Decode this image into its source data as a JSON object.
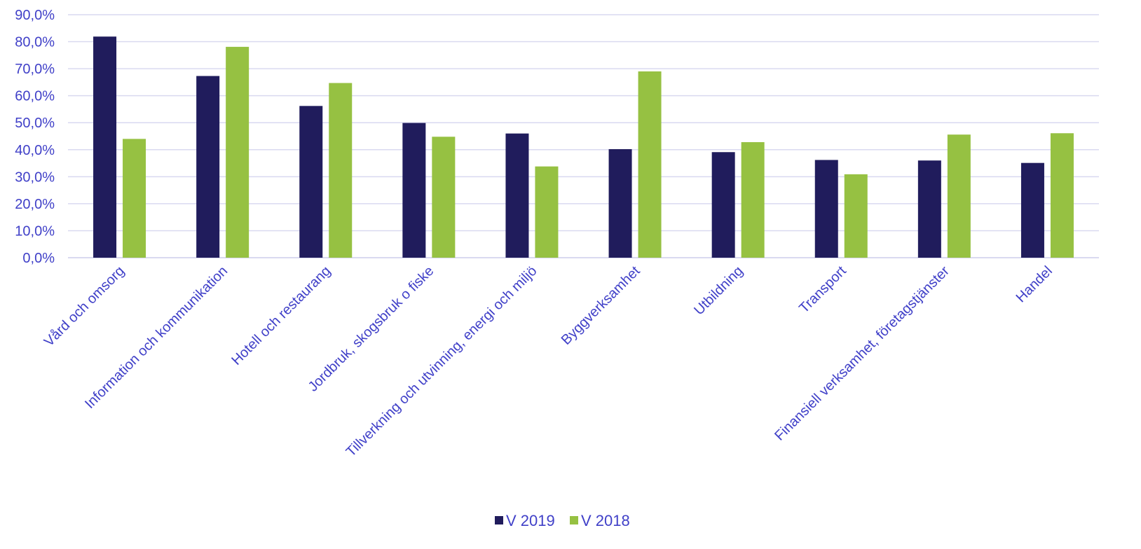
{
  "colors": {
    "v2019": "#201C5C",
    "v2018": "#96C142",
    "grid": "#D9D9F0",
    "text": "#4040C8"
  },
  "chart_data": {
    "type": "bar",
    "categories": [
      "Vård och omsorg",
      "Information och kommunikation",
      "Hotell och restaurang",
      "Jordbruk, skogsbruk o fiske",
      "Tillverkning och utvinning, energi och miljö",
      "Byggverksamhet",
      "Utbildning",
      "Transport",
      "Finansiell verksamhet, företagstjänster",
      "Handel"
    ],
    "series": [
      {
        "name": "V 2019",
        "values": [
          81.9,
          67.3,
          56.2,
          49.9,
          46.0,
          40.2,
          39.1,
          36.2,
          36.0,
          35.1
        ]
      },
      {
        "name": "V 2018",
        "values": [
          44.0,
          78.1,
          64.7,
          44.8,
          33.8,
          69.0,
          42.8,
          30.9,
          45.6,
          46.1
        ]
      }
    ],
    "ylim": [
      0,
      90
    ],
    "yticks": [
      "0,0%",
      "10,0%",
      "20,0%",
      "30,0%",
      "40,0%",
      "50,0%",
      "60,0%",
      "70,0%",
      "80,0%",
      "90,0%"
    ],
    "grid": true,
    "legend_position": "bottom",
    "title": "",
    "xlabel": "",
    "ylabel": ""
  }
}
